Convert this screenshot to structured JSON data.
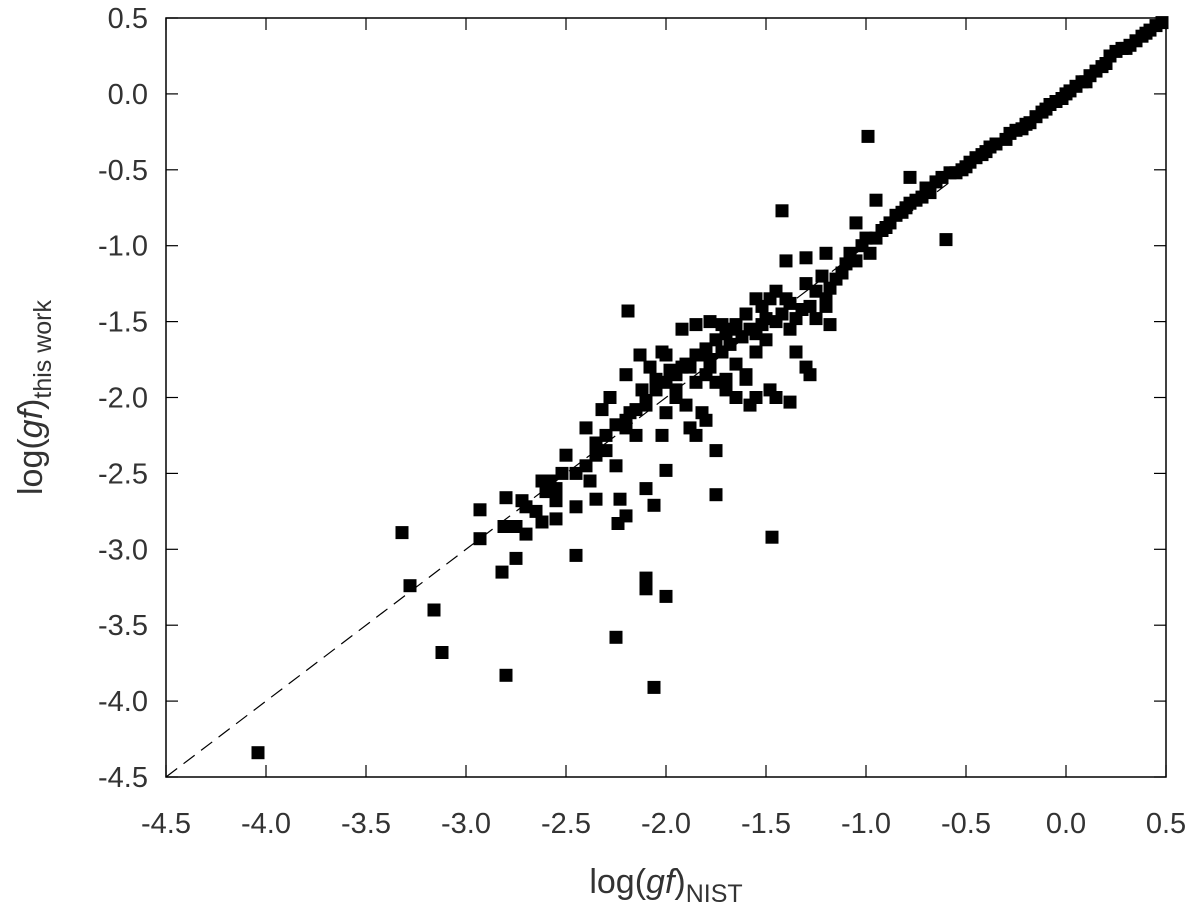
{
  "chart_data": {
    "type": "scatter",
    "xlabel": {
      "prefix": "log(",
      "italic": "gf",
      "suffix": ")",
      "subscript": "NIST"
    },
    "ylabel": {
      "prefix": "log(",
      "italic": "gf",
      "suffix": ")",
      "subscript": "this work"
    },
    "xlim": [
      -4.5,
      0.5
    ],
    "ylim": [
      -4.5,
      0.5
    ],
    "x_ticks": [
      -4.5,
      -4.0,
      -3.5,
      -3.0,
      -2.5,
      -2.0,
      -1.5,
      -1.0,
      -0.5,
      0.0,
      0.5
    ],
    "y_ticks": [
      -4.5,
      -4.0,
      -3.5,
      -3.0,
      -2.5,
      -2.0,
      -1.5,
      -1.0,
      -0.5,
      0.0,
      0.5
    ],
    "x_tick_labels": [
      "-4.5",
      "-4.0",
      "-3.5",
      "-3.0",
      "-2.5",
      "-2.0",
      "-1.5",
      "-1.0",
      "-0.5",
      "0.0",
      "0.5"
    ],
    "y_tick_labels": [
      "-4.5",
      "-4.0",
      "-3.5",
      "-3.0",
      "-2.5",
      "-2.0",
      "-1.5",
      "-1.0",
      "-0.5",
      "0.0",
      "0.5"
    ],
    "grid": false,
    "marker": "square",
    "marker_color": "#000000",
    "reference_line": {
      "style": "dashed",
      "x": [
        -4.5,
        0.5
      ],
      "y": [
        -4.5,
        0.5
      ]
    },
    "series": [
      {
        "points": [
          [
            -4.04,
            -4.34
          ],
          [
            -2.8,
            -3.83
          ],
          [
            -2.06,
            -3.91
          ],
          [
            -2.25,
            -3.58
          ],
          [
            -3.12,
            -3.68
          ],
          [
            -3.16,
            -3.4
          ],
          [
            -3.28,
            -3.24
          ],
          [
            -3.32,
            -2.89
          ],
          [
            -2.0,
            -3.31
          ],
          [
            -2.1,
            -3.19
          ],
          [
            -2.1,
            -3.26
          ],
          [
            -2.82,
            -3.15
          ],
          [
            -2.75,
            -3.06
          ],
          [
            -2.45,
            -3.04
          ],
          [
            -2.93,
            -2.93
          ],
          [
            -2.81,
            -2.85
          ],
          [
            -2.93,
            -2.74
          ],
          [
            -2.75,
            -2.85
          ],
          [
            -2.7,
            -2.9
          ],
          [
            -1.47,
            -2.92
          ],
          [
            -2.24,
            -2.83
          ],
          [
            -2.2,
            -2.78
          ],
          [
            -2.06,
            -2.71
          ],
          [
            -2.1,
            -2.6
          ],
          [
            -1.75,
            -2.64
          ],
          [
            -2.0,
            -2.48
          ],
          [
            -2.23,
            -2.67
          ],
          [
            -2.35,
            -2.67
          ],
          [
            -2.38,
            -2.55
          ],
          [
            -2.52,
            -2.5
          ],
          [
            -2.6,
            -2.62
          ],
          [
            -2.55,
            -2.68
          ],
          [
            -2.62,
            -2.82
          ],
          [
            -2.65,
            -2.75
          ],
          [
            -2.58,
            -2.55
          ],
          [
            -2.8,
            -2.66
          ],
          [
            -2.72,
            -2.68
          ],
          [
            -2.5,
            -2.38
          ],
          [
            -2.45,
            -2.72
          ],
          [
            -2.55,
            -2.8
          ],
          [
            -2.7,
            -2.72
          ],
          [
            -2.4,
            -2.2
          ],
          [
            -2.35,
            -2.3
          ],
          [
            -2.3,
            -2.35
          ],
          [
            -2.32,
            -2.08
          ],
          [
            -2.28,
            -2.0
          ],
          [
            -2.25,
            -2.45
          ],
          [
            -2.2,
            -2.2
          ],
          [
            -2.18,
            -2.1
          ],
          [
            -2.15,
            -2.25
          ],
          [
            -2.12,
            -1.95
          ],
          [
            -2.1,
            -2.05
          ],
          [
            -2.05,
            -1.88
          ],
          [
            -2.02,
            -2.25
          ],
          [
            -2.0,
            -2.1
          ],
          [
            -1.98,
            -1.82
          ],
          [
            -1.95,
            -1.95
          ],
          [
            -1.92,
            -1.8
          ],
          [
            -1.9,
            -2.05
          ],
          [
            -1.88,
            -2.2
          ],
          [
            -1.85,
            -1.9
          ],
          [
            -1.82,
            -2.1
          ],
          [
            -1.8,
            -1.85
          ],
          [
            -1.78,
            -1.75
          ],
          [
            -1.75,
            -2.35
          ],
          [
            -1.72,
            -1.7
          ],
          [
            -1.7,
            -1.88
          ],
          [
            -1.68,
            -1.65
          ],
          [
            -1.65,
            -1.78
          ],
          [
            -1.62,
            -1.6
          ],
          [
            -1.6,
            -1.85
          ],
          [
            -1.58,
            -1.55
          ],
          [
            -1.55,
            -1.7
          ],
          [
            -1.52,
            -1.52
          ],
          [
            -1.5,
            -1.62
          ],
          [
            -1.48,
            -1.95
          ],
          [
            -1.45,
            -1.5
          ],
          [
            -1.42,
            -0.77
          ],
          [
            -1.4,
            -1.35
          ],
          [
            -1.38,
            -1.55
          ],
          [
            -1.35,
            -1.48
          ],
          [
            -1.32,
            -1.42
          ],
          [
            -1.3,
            -1.25
          ],
          [
            -1.28,
            -1.4
          ],
          [
            -1.25,
            -1.3
          ],
          [
            -1.22,
            -1.2
          ],
          [
            -1.2,
            -1.35
          ],
          [
            -1.18,
            -1.28
          ],
          [
            -1.15,
            -1.22
          ],
          [
            -1.12,
            -1.18
          ],
          [
            -1.1,
            -1.12
          ],
          [
            -1.08,
            -1.05
          ],
          [
            -1.05,
            -1.1
          ],
          [
            -1.02,
            -1.0
          ],
          [
            -1.0,
            -0.95
          ],
          [
            -0.98,
            -1.05
          ],
          [
            -0.95,
            -0.95
          ],
          [
            -0.92,
            -0.9
          ],
          [
            -0.9,
            -0.88
          ],
          [
            -0.88,
            -0.85
          ],
          [
            -0.85,
            -0.8
          ],
          [
            -0.82,
            -0.78
          ],
          [
            -0.8,
            -0.75
          ],
          [
            -0.78,
            -0.72
          ],
          [
            -0.75,
            -0.7
          ],
          [
            -0.72,
            -0.68
          ],
          [
            -0.7,
            -0.62
          ],
          [
            -0.68,
            -0.65
          ],
          [
            -0.65,
            -0.58
          ],
          [
            -0.62,
            -0.55
          ],
          [
            -0.6,
            -0.96
          ],
          [
            -0.58,
            -0.52
          ],
          [
            -0.55,
            -0.52
          ],
          [
            -0.52,
            -0.5
          ],
          [
            -0.5,
            -0.48
          ],
          [
            -0.48,
            -0.45
          ],
          [
            -0.45,
            -0.42
          ],
          [
            -0.42,
            -0.4
          ],
          [
            -0.4,
            -0.38
          ],
          [
            -0.38,
            -0.35
          ],
          [
            -0.35,
            -0.33
          ],
          [
            -0.3,
            -0.3
          ],
          [
            -0.28,
            -0.26
          ],
          [
            -0.25,
            -0.24
          ],
          [
            -0.22,
            -0.23
          ],
          [
            -0.2,
            -0.2
          ],
          [
            -0.18,
            -0.19
          ],
          [
            -0.15,
            -0.15
          ],
          [
            -0.12,
            -0.12
          ],
          [
            -0.1,
            -0.1
          ],
          [
            -0.08,
            -0.07
          ],
          [
            -0.05,
            -0.05
          ],
          [
            -0.02,
            -0.03
          ],
          [
            0.0,
            0.0
          ],
          [
            0.02,
            0.02
          ],
          [
            0.05,
            0.05
          ],
          [
            0.08,
            0.08
          ],
          [
            0.1,
            0.08
          ],
          [
            0.12,
            0.12
          ],
          [
            0.15,
            0.15
          ],
          [
            0.18,
            0.18
          ],
          [
            0.2,
            0.2
          ],
          [
            0.22,
            0.25
          ],
          [
            0.25,
            0.28
          ],
          [
            0.28,
            0.3
          ],
          [
            0.3,
            0.3
          ],
          [
            0.32,
            0.32
          ],
          [
            0.35,
            0.35
          ],
          [
            0.38,
            0.38
          ],
          [
            0.4,
            0.4
          ],
          [
            0.42,
            0.42
          ],
          [
            0.45,
            0.45
          ],
          [
            0.48,
            0.47
          ],
          [
            -0.99,
            -0.28
          ],
          [
            -0.78,
            -0.55
          ],
          [
            -0.95,
            -0.7
          ],
          [
            -1.05,
            -0.85
          ],
          [
            -1.2,
            -1.05
          ],
          [
            -1.3,
            -1.08
          ],
          [
            -1.4,
            -1.1
          ],
          [
            -1.45,
            -1.3
          ],
          [
            -1.55,
            -1.35
          ],
          [
            -1.6,
            -1.45
          ],
          [
            -1.65,
            -1.52
          ],
          [
            -1.7,
            -1.58
          ],
          [
            -1.75,
            -1.62
          ],
          [
            -1.8,
            -1.68
          ],
          [
            -1.85,
            -1.72
          ],
          [
            -1.9,
            -1.78
          ],
          [
            -1.95,
            -1.85
          ],
          [
            -2.0,
            -1.72
          ],
          [
            -2.05,
            -1.95
          ],
          [
            -2.1,
            -2.02
          ],
          [
            -2.15,
            -2.08
          ],
          [
            -2.2,
            -2.15
          ],
          [
            -2.25,
            -2.18
          ],
          [
            -2.3,
            -2.25
          ],
          [
            -2.35,
            -2.38
          ],
          [
            -2.4,
            -2.45
          ],
          [
            -2.45,
            -2.5
          ],
          [
            -2.55,
            -2.6
          ],
          [
            -2.62,
            -2.55
          ],
          [
            -2.19,
            -1.43
          ],
          [
            -2.2,
            -1.85
          ],
          [
            -1.92,
            -1.55
          ],
          [
            -1.85,
            -1.52
          ],
          [
            -1.78,
            -1.5
          ],
          [
            -1.72,
            -1.52
          ],
          [
            -1.68,
            -1.55
          ],
          [
            -1.62,
            -1.6
          ],
          [
            -1.55,
            -1.58
          ],
          [
            -1.5,
            -1.48
          ],
          [
            -1.42,
            -1.45
          ],
          [
            -1.38,
            -1.38
          ],
          [
            -1.48,
            -1.35
          ],
          [
            -1.52,
            -1.4
          ],
          [
            -1.25,
            -1.48
          ],
          [
            -1.2,
            -1.4
          ],
          [
            -1.18,
            -1.52
          ],
          [
            -1.35,
            -1.7
          ],
          [
            -1.3,
            -1.8
          ],
          [
            -1.28,
            -1.85
          ],
          [
            -1.38,
            -2.03
          ],
          [
            -1.45,
            -2.0
          ],
          [
            -1.55,
            -2.0
          ],
          [
            -1.6,
            -1.88
          ],
          [
            -1.58,
            -2.05
          ],
          [
            -1.65,
            -2.0
          ],
          [
            -1.7,
            -1.95
          ],
          [
            -1.75,
            -1.9
          ],
          [
            -1.8,
            -2.15
          ],
          [
            -1.85,
            -2.25
          ],
          [
            -2.13,
            -1.72
          ],
          [
            -2.08,
            -1.8
          ],
          [
            -2.0,
            -1.9
          ],
          [
            -1.95,
            -2.0
          ],
          [
            -2.02,
            -1.7
          ],
          [
            -1.88,
            -1.8
          ],
          [
            -1.82,
            -1.72
          ],
          [
            -1.78,
            -1.8
          ]
        ]
      }
    ]
  }
}
